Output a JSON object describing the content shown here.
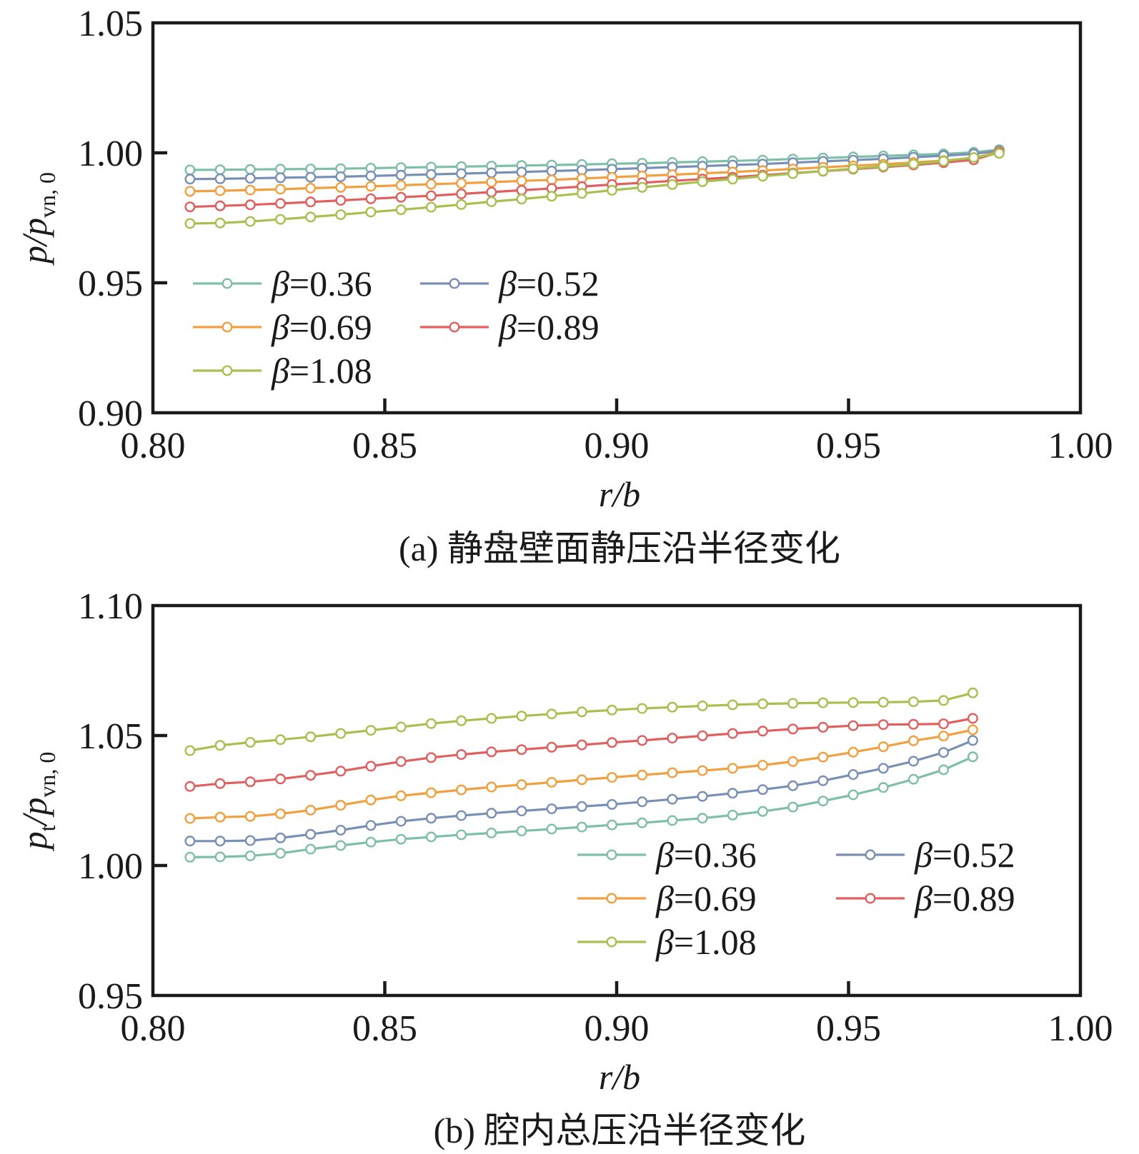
{
  "chart_data": [
    {
      "type": "line",
      "title": "",
      "caption": "(a) 静盘壁面静压沿半径变化",
      "xlabel": "r/b",
      "ylabel": {
        "main": "p/p",
        "subscript": "vn, 0"
      },
      "xlim": [
        0.8,
        1.0
      ],
      "ylim": [
        0.9,
        1.05
      ],
      "xticks": [
        0.8,
        0.85,
        0.9,
        0.95,
        1.0
      ],
      "xtick_labels": [
        "0.80",
        "0.85",
        "0.90",
        "0.95",
        "1.00"
      ],
      "yticks": [
        0.9,
        0.95,
        1.0,
        1.05
      ],
      "ytick_labels": [
        "0.90",
        "0.95",
        "1.00",
        "1.05"
      ],
      "x": [
        0.808,
        0.8145,
        0.821,
        0.8275,
        0.834,
        0.8405,
        0.847,
        0.8535,
        0.86,
        0.8665,
        0.873,
        0.8795,
        0.886,
        0.8925,
        0.899,
        0.9055,
        0.912,
        0.9185,
        0.925,
        0.9315,
        0.938,
        0.9445,
        0.951,
        0.9575,
        0.964,
        0.9705,
        0.977,
        0.9825
      ],
      "legend": {
        "position": "lower-left",
        "columns": 2
      },
      "series": [
        {
          "name": "β=0.36",
          "symbol": "β",
          "value_text": "=0.36",
          "color": "#7fbfaa",
          "values": [
            0.9934,
            0.9935,
            0.9936,
            0.9937,
            0.9938,
            0.9939,
            0.9941,
            0.9943,
            0.9945,
            0.9947,
            0.9949,
            0.9951,
            0.9953,
            0.9955,
            0.9958,
            0.996,
            0.9963,
            0.9966,
            0.9969,
            0.9972,
            0.9976,
            0.998,
            0.9984,
            0.9988,
            0.9992,
            0.9996,
            1.0002,
            1.0012
          ]
        },
        {
          "name": "β=0.52",
          "symbol": "β",
          "value_text": "=0.52",
          "color": "#7990b5",
          "values": [
            0.9899,
            0.99,
            0.9902,
            0.9904,
            0.9906,
            0.9908,
            0.9911,
            0.9914,
            0.9917,
            0.992,
            0.9923,
            0.9926,
            0.993,
            0.9933,
            0.9937,
            0.9941,
            0.9945,
            0.9949,
            0.9953,
            0.9957,
            0.9962,
            0.9967,
            0.9972,
            0.9977,
            0.9983,
            0.9989,
            0.9996,
            1.0008
          ]
        },
        {
          "name": "β=0.69",
          "symbol": "β",
          "value_text": "=0.69",
          "color": "#f0a040",
          "values": [
            0.9852,
            0.9854,
            0.9857,
            0.986,
            0.9864,
            0.9867,
            0.9871,
            0.9875,
            0.9879,
            0.9883,
            0.9887,
            0.9892,
            0.9896,
            0.9901,
            0.9906,
            0.9911,
            0.9916,
            0.9921,
            0.9926,
            0.9932,
            0.9938,
            0.9944,
            0.995,
            0.9956,
            0.9963,
            0.997,
            0.998,
            1.0004
          ]
        },
        {
          "name": "β=0.89",
          "symbol": "β",
          "value_text": "=0.89",
          "color": "#e06060",
          "values": [
            0.9792,
            0.9796,
            0.98,
            0.9805,
            0.9811,
            0.9817,
            0.9823,
            0.9829,
            0.9835,
            0.9842,
            0.9849,
            0.9856,
            0.9863,
            0.987,
            0.9878,
            0.9885,
            0.9892,
            0.9899,
            0.9906,
            0.9914,
            0.9922,
            0.9929,
            0.9937,
            0.9945,
            0.9953,
            0.9962,
            0.9973,
            1.0002
          ]
        },
        {
          "name": "β=1.08",
          "symbol": "β",
          "value_text": "=1.08",
          "color": "#a8c050",
          "values": [
            0.9728,
            0.973,
            0.9736,
            0.9744,
            0.9753,
            0.9762,
            0.9772,
            0.9781,
            0.9791,
            0.9801,
            0.9812,
            0.9822,
            0.9833,
            0.9844,
            0.9856,
            0.9867,
            0.9878,
            0.9889,
            0.9899,
            0.991,
            0.992,
            0.993,
            0.9939,
            0.9948,
            0.9957,
            0.9968,
            0.9982,
            0.9998
          ]
        }
      ]
    },
    {
      "type": "line",
      "title": "",
      "caption": "(b) 腔内总压沿半径变化",
      "xlabel": "r/b",
      "ylabel": {
        "main": "p",
        "subscript_1": "t",
        "main_2": "/p",
        "subscript": "vn, 0"
      },
      "xlim": [
        0.8,
        1.0
      ],
      "ylim": [
        0.95,
        1.1
      ],
      "xticks": [
        0.8,
        0.85,
        0.9,
        0.95,
        1.0
      ],
      "xtick_labels": [
        "0.80",
        "0.85",
        "0.90",
        "0.95",
        "1.00"
      ],
      "yticks": [
        0.95,
        1.0,
        1.05,
        1.1
      ],
      "ytick_labels": [
        "0.95",
        "1.00",
        "1.05",
        "1.10"
      ],
      "x": [
        0.808,
        0.8145,
        0.821,
        0.8275,
        0.834,
        0.8405,
        0.847,
        0.8535,
        0.86,
        0.8665,
        0.873,
        0.8795,
        0.886,
        0.8925,
        0.899,
        0.9055,
        0.912,
        0.9185,
        0.925,
        0.9315,
        0.938,
        0.9445,
        0.951,
        0.9575,
        0.964,
        0.9705,
        0.9768
      ],
      "legend": {
        "position": "lower-right",
        "columns": 2
      },
      "series": [
        {
          "name": "β=0.36",
          "symbol": "β",
          "value_text": "=0.36",
          "color": "#7fbfaa",
          "values": [
            1.0032,
            1.0033,
            1.0037,
            1.0047,
            1.0063,
            1.0077,
            1.009,
            1.0101,
            1.011,
            1.0118,
            1.0125,
            1.0133,
            1.014,
            1.0148,
            1.0156,
            1.0164,
            1.0173,
            1.0182,
            1.0194,
            1.0208,
            1.0225,
            1.0248,
            1.0272,
            1.03,
            1.0332,
            1.0368,
            1.0418
          ]
        },
        {
          "name": "β=0.52",
          "symbol": "β",
          "value_text": "=0.52",
          "color": "#7990b5",
          "values": [
            1.0094,
            1.0094,
            1.0096,
            1.0106,
            1.012,
            1.0136,
            1.0154,
            1.017,
            1.0182,
            1.0192,
            1.0201,
            1.021,
            1.0218,
            1.0227,
            1.0235,
            1.0245,
            1.0255,
            1.0266,
            1.0278,
            1.0292,
            1.0307,
            1.0326,
            1.035,
            1.0374,
            1.0401,
            1.0435,
            1.0481
          ]
        },
        {
          "name": "β=0.69",
          "symbol": "β",
          "value_text": "=0.69",
          "color": "#f0a040",
          "values": [
            1.0181,
            1.0186,
            1.0189,
            1.0199,
            1.0213,
            1.0232,
            1.0252,
            1.0268,
            1.028,
            1.0291,
            1.0302,
            1.0311,
            1.032,
            1.033,
            1.0339,
            1.0348,
            1.0357,
            1.0365,
            1.0374,
            1.0386,
            1.04,
            1.0417,
            1.0436,
            1.0457,
            1.048,
            1.0498,
            1.0522
          ]
        },
        {
          "name": "β=0.89",
          "symbol": "β",
          "value_text": "=0.89",
          "color": "#e06060",
          "values": [
            1.0304,
            1.0315,
            1.0322,
            1.0333,
            1.0347,
            1.0363,
            1.0382,
            1.04,
            1.0415,
            1.0427,
            1.0437,
            1.0446,
            1.0455,
            1.0464,
            1.0473,
            1.0481,
            1.049,
            1.0499,
            1.0508,
            1.0517,
            1.0525,
            1.0532,
            1.0538,
            1.0542,
            1.0543,
            1.0545,
            1.0566
          ]
        },
        {
          "name": "β=1.08",
          "symbol": "β",
          "value_text": "=1.08",
          "color": "#a8c050",
          "values": [
            1.0442,
            1.0462,
            1.0474,
            1.0484,
            1.0495,
            1.0508,
            1.052,
            1.0533,
            1.0546,
            1.0557,
            1.0566,
            1.0575,
            1.0583,
            1.0591,
            1.0598,
            1.0604,
            1.0609,
            1.0614,
            1.0618,
            1.0622,
            1.0624,
            1.0626,
            1.0627,
            1.0628,
            1.063,
            1.0635,
            1.0664
          ]
        }
      ]
    }
  ]
}
